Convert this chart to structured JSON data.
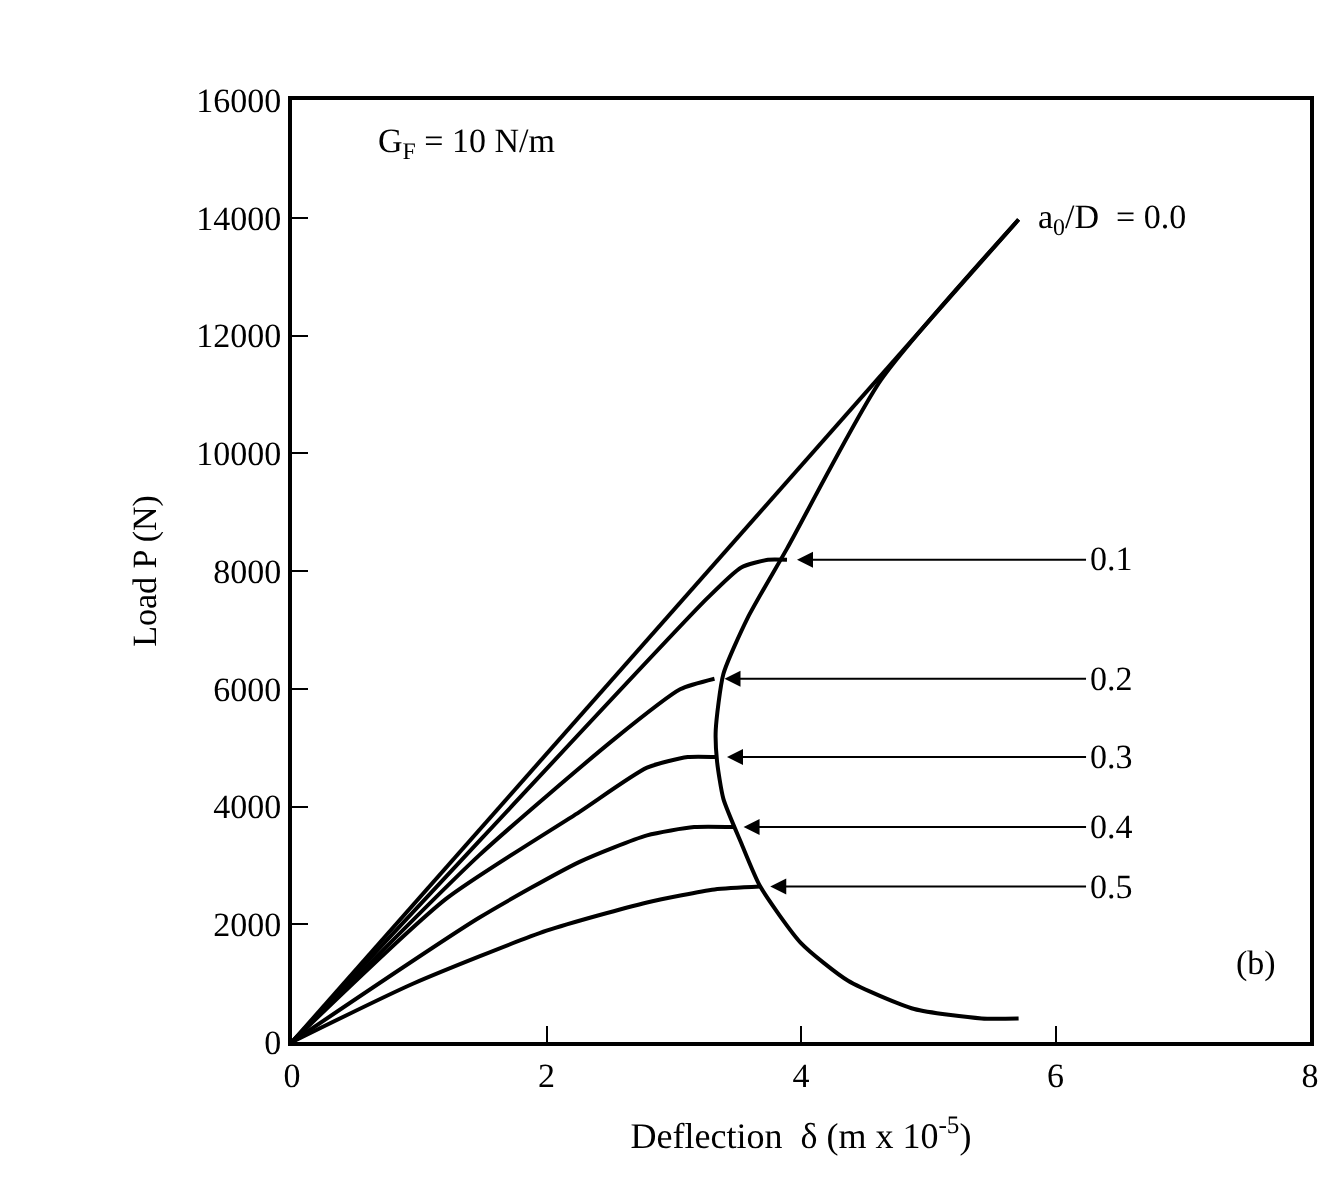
{
  "chart_data": {
    "type": "line",
    "xlabel": "Deflection  δ (m x 10$^{-5}$)",
    "ylabel": "Load P (N)",
    "xlim": [
      0,
      8
    ],
    "ylim": [
      0,
      16000
    ],
    "xticks": [
      0,
      2,
      4,
      6,
      8
    ],
    "yticks": [
      0,
      2000,
      4000,
      6000,
      8000,
      10000,
      12000,
      14000,
      16000
    ],
    "grid": false,
    "legend": false,
    "marker": "none",
    "line_style": "solid",
    "annotations": [
      "G$_{F}$ = 10 N/m",
      "(b)"
    ],
    "series": [
      {
        "name": "a$_{0}$/D  = 0.0",
        "color": "#000000",
        "x": [
          0,
          5.71
        ],
        "values": [
          0,
          13970
        ]
      },
      {
        "name": "0.1",
        "color": "#000000",
        "x": [
          0,
          1.5,
          3.26,
          3.53,
          3.74,
          3.89
        ],
        "values": [
          0,
          3480,
          7530,
          8060,
          8190,
          8190
        ]
      },
      {
        "name": "0.2",
        "color": "#000000",
        "x": [
          0,
          1.47,
          2.53,
          3.05,
          3.32
        ],
        "values": [
          0,
          3170,
          5140,
          5990,
          6170
        ]
      },
      {
        "name": "0.3",
        "color": "#000000",
        "x": [
          0,
          1.21,
          2.26,
          2.79,
          3.11,
          3.34
        ],
        "values": [
          0,
          2430,
          3910,
          4660,
          4840,
          4840
        ]
      },
      {
        "name": "0.4",
        "color": "#000000",
        "x": [
          0,
          1.47,
          2.26,
          2.79,
          3.16,
          3.47
        ],
        "values": [
          0,
          2110,
          3060,
          3510,
          3650,
          3650
        ]
      },
      {
        "name": "0.5",
        "color": "#000000",
        "x": [
          0,
          0.95,
          2.0,
          2.79,
          3.32,
          3.68
        ],
        "values": [
          0,
          990,
          1890,
          2370,
          2590,
          2640
        ]
      },
      {
        "color": "#000000",
        "x": [
          5.71,
          4.63,
          3.89,
          3.58,
          3.39,
          3.33,
          3.34,
          3.39,
          3.53,
          3.68,
          4.0,
          4.37,
          4.89,
          5.42,
          5.71
        ],
        "values": [
          13970,
          11250,
          8380,
          7200,
          6250,
          5300,
          4770,
          4130,
          3380,
          2640,
          1680,
          1040,
          560,
          400,
          400
        ]
      }
    ]
  }
}
